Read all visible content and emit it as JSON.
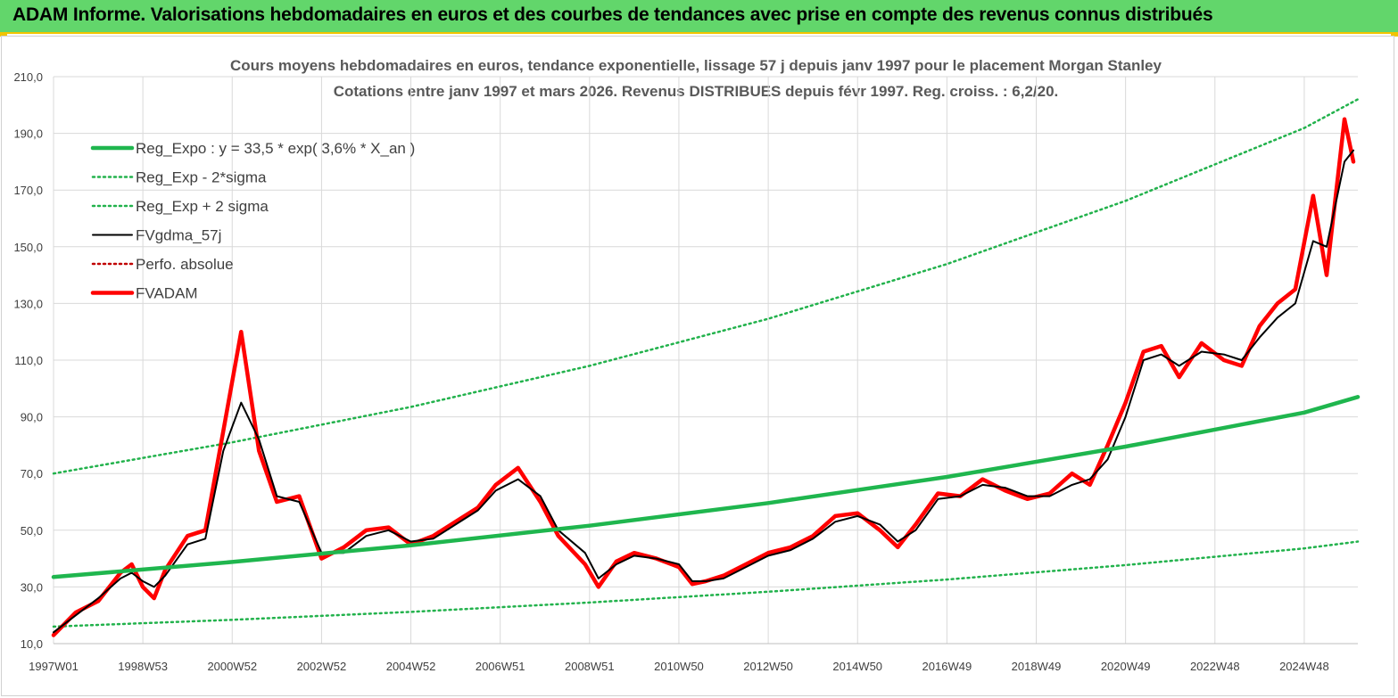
{
  "header": {
    "title": "ADAM Informe. Valorisations hebdomadaires en euros et des courbes de tendances avec prise en compte des revenus connus distribués"
  },
  "colors": {
    "banner_bg": "#62d66b",
    "accent_yellow": "#f2c400",
    "reg_expo": "#1fb64e",
    "sigma_bands": "#22b24c",
    "smoothed": "#000000",
    "price": "#ff0000",
    "perfo": "#c00000"
  },
  "chart_data": {
    "type": "line",
    "title_line1": "Cours moyens hebdomadaires en euros, tendance exponentielle, lissage 57 j depuis janv 1997 pour le placement Morgan Stanley",
    "title_line2": "Cotations entre janv 1997 et mars 2026. Revenus DISTRIBUES depuis févr 1997. Reg. croiss. : 6,2/20.",
    "ylim": [
      10,
      210
    ],
    "xlim": [
      1997.0,
      2026.2
    ],
    "grid": true,
    "legend_position": "top-left",
    "y_ticks": [
      "10,0",
      "30,0",
      "50,0",
      "70,0",
      "90,0",
      "110,0",
      "130,0",
      "150,0",
      "170,0",
      "190,0",
      "210,0"
    ],
    "y_tick_values": [
      10,
      30,
      50,
      70,
      90,
      110,
      130,
      150,
      170,
      190,
      210
    ],
    "x_ticks": [
      "1997W01",
      "1998W53",
      "2000W52",
      "2002W52",
      "2004W52",
      "2006W51",
      "2008W51",
      "2010W50",
      "2012W50",
      "2014W50",
      "2016W49",
      "2018W49",
      "2020W49",
      "2022W48",
      "2024W48"
    ],
    "x_tick_values": [
      1997.0,
      1999.0,
      2001.0,
      2003.0,
      2005.0,
      2007.0,
      2009.0,
      2011.0,
      2013.0,
      2015.0,
      2017.0,
      2019.0,
      2021.0,
      2023.0,
      2025.0
    ],
    "series": [
      {
        "name": "Reg_Expo : y = 33,5 * exp( 3,6% *  X_an )",
        "style": "solid-thick",
        "color": "#1fb64e",
        "x": [
          1997.0,
          2001.0,
          2005.0,
          2009.0,
          2013.0,
          2017.0,
          2021.0,
          2025.0,
          2026.2
        ],
        "values": [
          33.5,
          38.8,
          44.7,
          51.6,
          59.6,
          68.8,
          79.5,
          91.5,
          97.0
        ]
      },
      {
        "name": "Reg_Exp - 2*sigma",
        "style": "dotted",
        "color": "#22b24c",
        "x": [
          1997.0,
          2001.0,
          2005.0,
          2009.0,
          2013.0,
          2017.0,
          2021.0,
          2025.0,
          2026.2
        ],
        "values": [
          16.0,
          18.4,
          21.2,
          24.5,
          28.3,
          32.6,
          37.7,
          43.6,
          46.0
        ]
      },
      {
        "name": "Reg_Exp + 2 sigma",
        "style": "dotted",
        "color": "#22b24c",
        "x": [
          1997.0,
          2001.0,
          2005.0,
          2009.0,
          2013.0,
          2017.0,
          2021.0,
          2025.0,
          2026.2
        ],
        "values": [
          70.0,
          81.0,
          93.5,
          108.0,
          124.6,
          143.9,
          166.2,
          191.9,
          202.0
        ]
      },
      {
        "name": "FVgdma_57j",
        "style": "solid",
        "color": "#000000",
        "x": [
          1997.0,
          1997.5,
          1998.0,
          1998.5,
          1998.75,
          1999.0,
          1999.25,
          1999.5,
          2000.0,
          2000.4,
          2000.8,
          2001.2,
          2001.6,
          2002.0,
          2002.5,
          2003.0,
          2003.5,
          2004.0,
          2004.5,
          2005.0,
          2005.5,
          2006.0,
          2006.5,
          2006.9,
          2007.4,
          2007.9,
          2008.3,
          2008.9,
          2009.2,
          2009.6,
          2010.0,
          2010.5,
          2011.0,
          2011.3,
          2011.6,
          2012.0,
          2012.5,
          2013.0,
          2013.5,
          2014.0,
          2014.5,
          2015.0,
          2015.5,
          2015.9,
          2016.3,
          2016.8,
          2017.3,
          2017.8,
          2018.3,
          2018.8,
          2019.3,
          2019.8,
          2020.2,
          2020.6,
          2021.0,
          2021.4,
          2021.8,
          2022.2,
          2022.7,
          2023.2,
          2023.6,
          2024.0,
          2024.4,
          2024.8,
          2025.2,
          2025.5,
          2025.9,
          2026.1
        ],
        "values": [
          14,
          20,
          26,
          33,
          35,
          32,
          30,
          34,
          45,
          47,
          78,
          95,
          82,
          62,
          60,
          42,
          42,
          48,
          50,
          46,
          47,
          52,
          57,
          64,
          68,
          62,
          50,
          42,
          33,
          38,
          41,
          40,
          38,
          32,
          32,
          33,
          37,
          41,
          43,
          47,
          53,
          55,
          52,
          46,
          50,
          61,
          62,
          66,
          65,
          62,
          62,
          66,
          68,
          75,
          90,
          110,
          112,
          108,
          113,
          112,
          110,
          118,
          125,
          130,
          152,
          150,
          180,
          184
        ]
      },
      {
        "name": "Perfo. absolue",
        "style": "dotted",
        "color": "#c00000",
        "x": [
          1997.0,
          1997.5,
          1998.0,
          1998.5,
          1998.75,
          1999.0,
          1999.25,
          1999.5,
          2000.0,
          2000.4,
          2000.8,
          2001.2,
          2001.6,
          2002.0,
          2002.5,
          2003.0,
          2003.5,
          2004.0,
          2004.5,
          2005.0,
          2005.5,
          2006.0,
          2006.5,
          2006.9,
          2007.4,
          2007.9,
          2008.3,
          2008.9,
          2009.2,
          2009.6,
          2010.0,
          2010.5,
          2011.0,
          2011.3,
          2011.6,
          2012.0,
          2012.5,
          2013.0,
          2013.5,
          2014.0,
          2014.5,
          2015.0,
          2015.5,
          2015.9,
          2016.3,
          2016.8,
          2017.3,
          2017.8,
          2018.3,
          2018.8,
          2019.3,
          2019.8,
          2020.2,
          2020.6,
          2021.0,
          2021.4,
          2021.8,
          2022.2,
          2022.7,
          2023.2,
          2023.6,
          2024.0,
          2024.4,
          2024.8,
          2025.2,
          2025.5,
          2025.9,
          2026.1
        ],
        "values": [
          13,
          21,
          25,
          35,
          38,
          30,
          26,
          36,
          48,
          50,
          85,
          120,
          78,
          60,
          62,
          40,
          44,
          50,
          51,
          45,
          48,
          53,
          58,
          66,
          72,
          60,
          48,
          38,
          30,
          39,
          42,
          40,
          37,
          31,
          32,
          34,
          38,
          42,
          44,
          48,
          55,
          56,
          50,
          44,
          52,
          63,
          62,
          68,
          64,
          61,
          63,
          70,
          66,
          80,
          95,
          113,
          115,
          104,
          116,
          110,
          108,
          122,
          130,
          135,
          168,
          140,
          195,
          180
        ]
      },
      {
        "name": "FVADAM",
        "style": "solid-thick",
        "color": "#ff0000",
        "x": [
          1997.0,
          1997.5,
          1998.0,
          1998.5,
          1998.75,
          1999.0,
          1999.25,
          1999.5,
          2000.0,
          2000.4,
          2000.8,
          2001.2,
          2001.6,
          2002.0,
          2002.5,
          2003.0,
          2003.5,
          2004.0,
          2004.5,
          2005.0,
          2005.5,
          2006.0,
          2006.5,
          2006.9,
          2007.4,
          2007.9,
          2008.3,
          2008.9,
          2009.2,
          2009.6,
          2010.0,
          2010.5,
          2011.0,
          2011.3,
          2011.6,
          2012.0,
          2012.5,
          2013.0,
          2013.5,
          2014.0,
          2014.5,
          2015.0,
          2015.5,
          2015.9,
          2016.3,
          2016.8,
          2017.3,
          2017.8,
          2018.3,
          2018.8,
          2019.3,
          2019.8,
          2020.2,
          2020.6,
          2021.0,
          2021.4,
          2021.8,
          2022.2,
          2022.7,
          2023.2,
          2023.6,
          2024.0,
          2024.4,
          2024.8,
          2025.2,
          2025.5,
          2025.9,
          2026.1
        ],
        "values": [
          13,
          21,
          25,
          35,
          38,
          30,
          26,
          36,
          48,
          50,
          85,
          120,
          78,
          60,
          62,
          40,
          44,
          50,
          51,
          45,
          48,
          53,
          58,
          66,
          72,
          60,
          48,
          38,
          30,
          39,
          42,
          40,
          37,
          31,
          32,
          34,
          38,
          42,
          44,
          48,
          55,
          56,
          50,
          44,
          52,
          63,
          62,
          68,
          64,
          61,
          63,
          70,
          66,
          80,
          95,
          113,
          115,
          104,
          116,
          110,
          108,
          122,
          130,
          135,
          168,
          140,
          195,
          180
        ]
      }
    ]
  }
}
